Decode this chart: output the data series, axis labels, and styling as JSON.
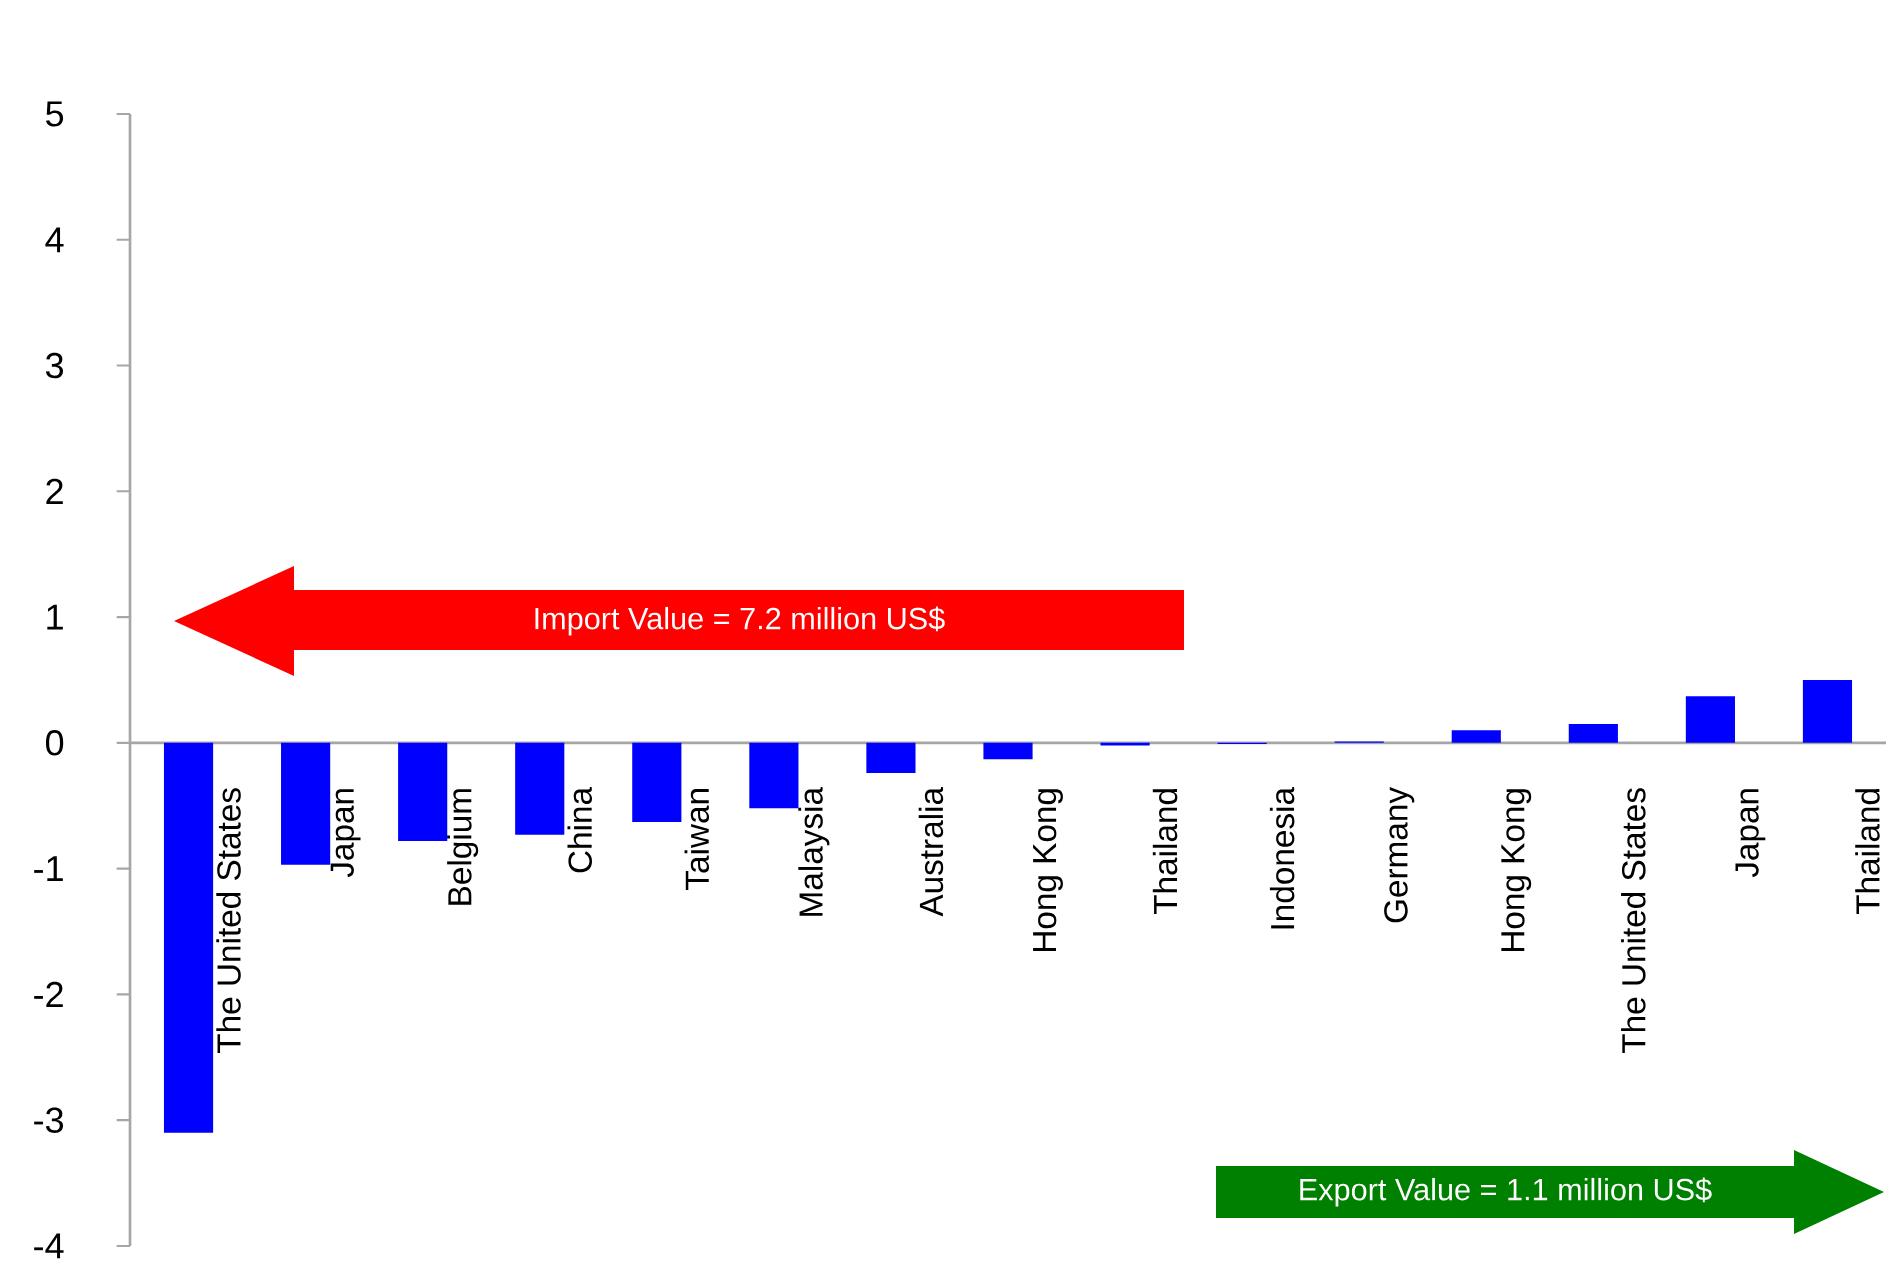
{
  "chart_data": {
    "type": "bar",
    "categories": [
      "The United States",
      "Japan",
      "Belgium",
      "China",
      "Taiwan",
      "Malaysia",
      "Australia",
      "Hong Kong",
      "Thailand",
      "Indonesia",
      "Germany",
      "Hong Kong",
      "The United States",
      "Japan",
      "Thailand"
    ],
    "values": [
      -3.1,
      -0.97,
      -0.78,
      -0.73,
      -0.63,
      -0.52,
      -0.24,
      -0.13,
      -0.02,
      -0.01,
      0.01,
      0.1,
      0.15,
      0.37,
      0.5
    ],
    "color": "#0000ff",
    "ylim": [
      -4,
      5
    ],
    "yticks": [
      -4,
      -3,
      -2,
      -1,
      0,
      1,
      2,
      3,
      4,
      5
    ],
    "annotations": [
      "Import Value = 7.2 million US$",
      "Export Value = 1.1 million US$"
    ]
  }
}
